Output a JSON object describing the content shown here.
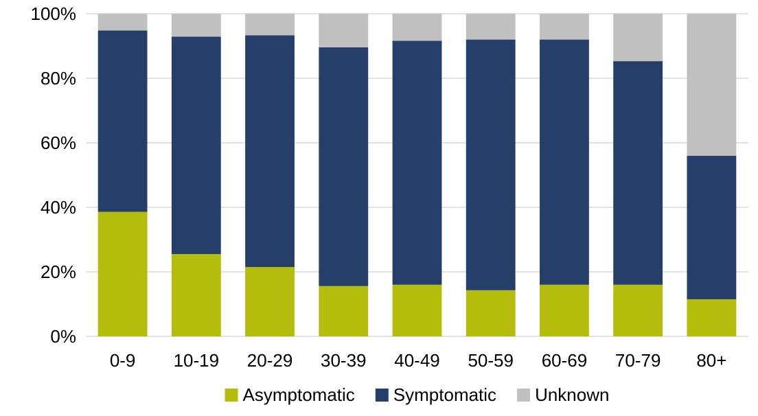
{
  "chart_data": {
    "type": "bar",
    "stacked": true,
    "title": "",
    "xlabel": "",
    "ylabel": "",
    "categories": [
      "0-9",
      "10-19",
      "20-29",
      "30-39",
      "40-49",
      "50-59",
      "60-69",
      "70-79",
      "80+"
    ],
    "series": [
      {
        "name": "Asymptomatic",
        "color": "#b5bd0c",
        "values": [
          38.6,
          25.5,
          21.5,
          15.6,
          16.0,
          14.3,
          16.0,
          16.0,
          11.5
        ]
      },
      {
        "name": "Symptomatic",
        "color": "#253f6a",
        "values": [
          56.2,
          67.4,
          71.8,
          74.0,
          75.6,
          77.7,
          76.0,
          69.3,
          44.5
        ]
      },
      {
        "name": "Unknown",
        "color": "#c0c0c0",
        "values": [
          5.2,
          7.1,
          6.7,
          10.4,
          8.4,
          8.0,
          8.0,
          14.7,
          44.0
        ]
      }
    ],
    "ylim": [
      0,
      100
    ],
    "yticks": [
      0,
      20,
      40,
      60,
      80,
      100
    ],
    "ytick_labels": [
      "0%",
      "20%",
      "40%",
      "60%",
      "80%",
      "100%"
    ],
    "grid": true,
    "legend_position": "bottom"
  }
}
